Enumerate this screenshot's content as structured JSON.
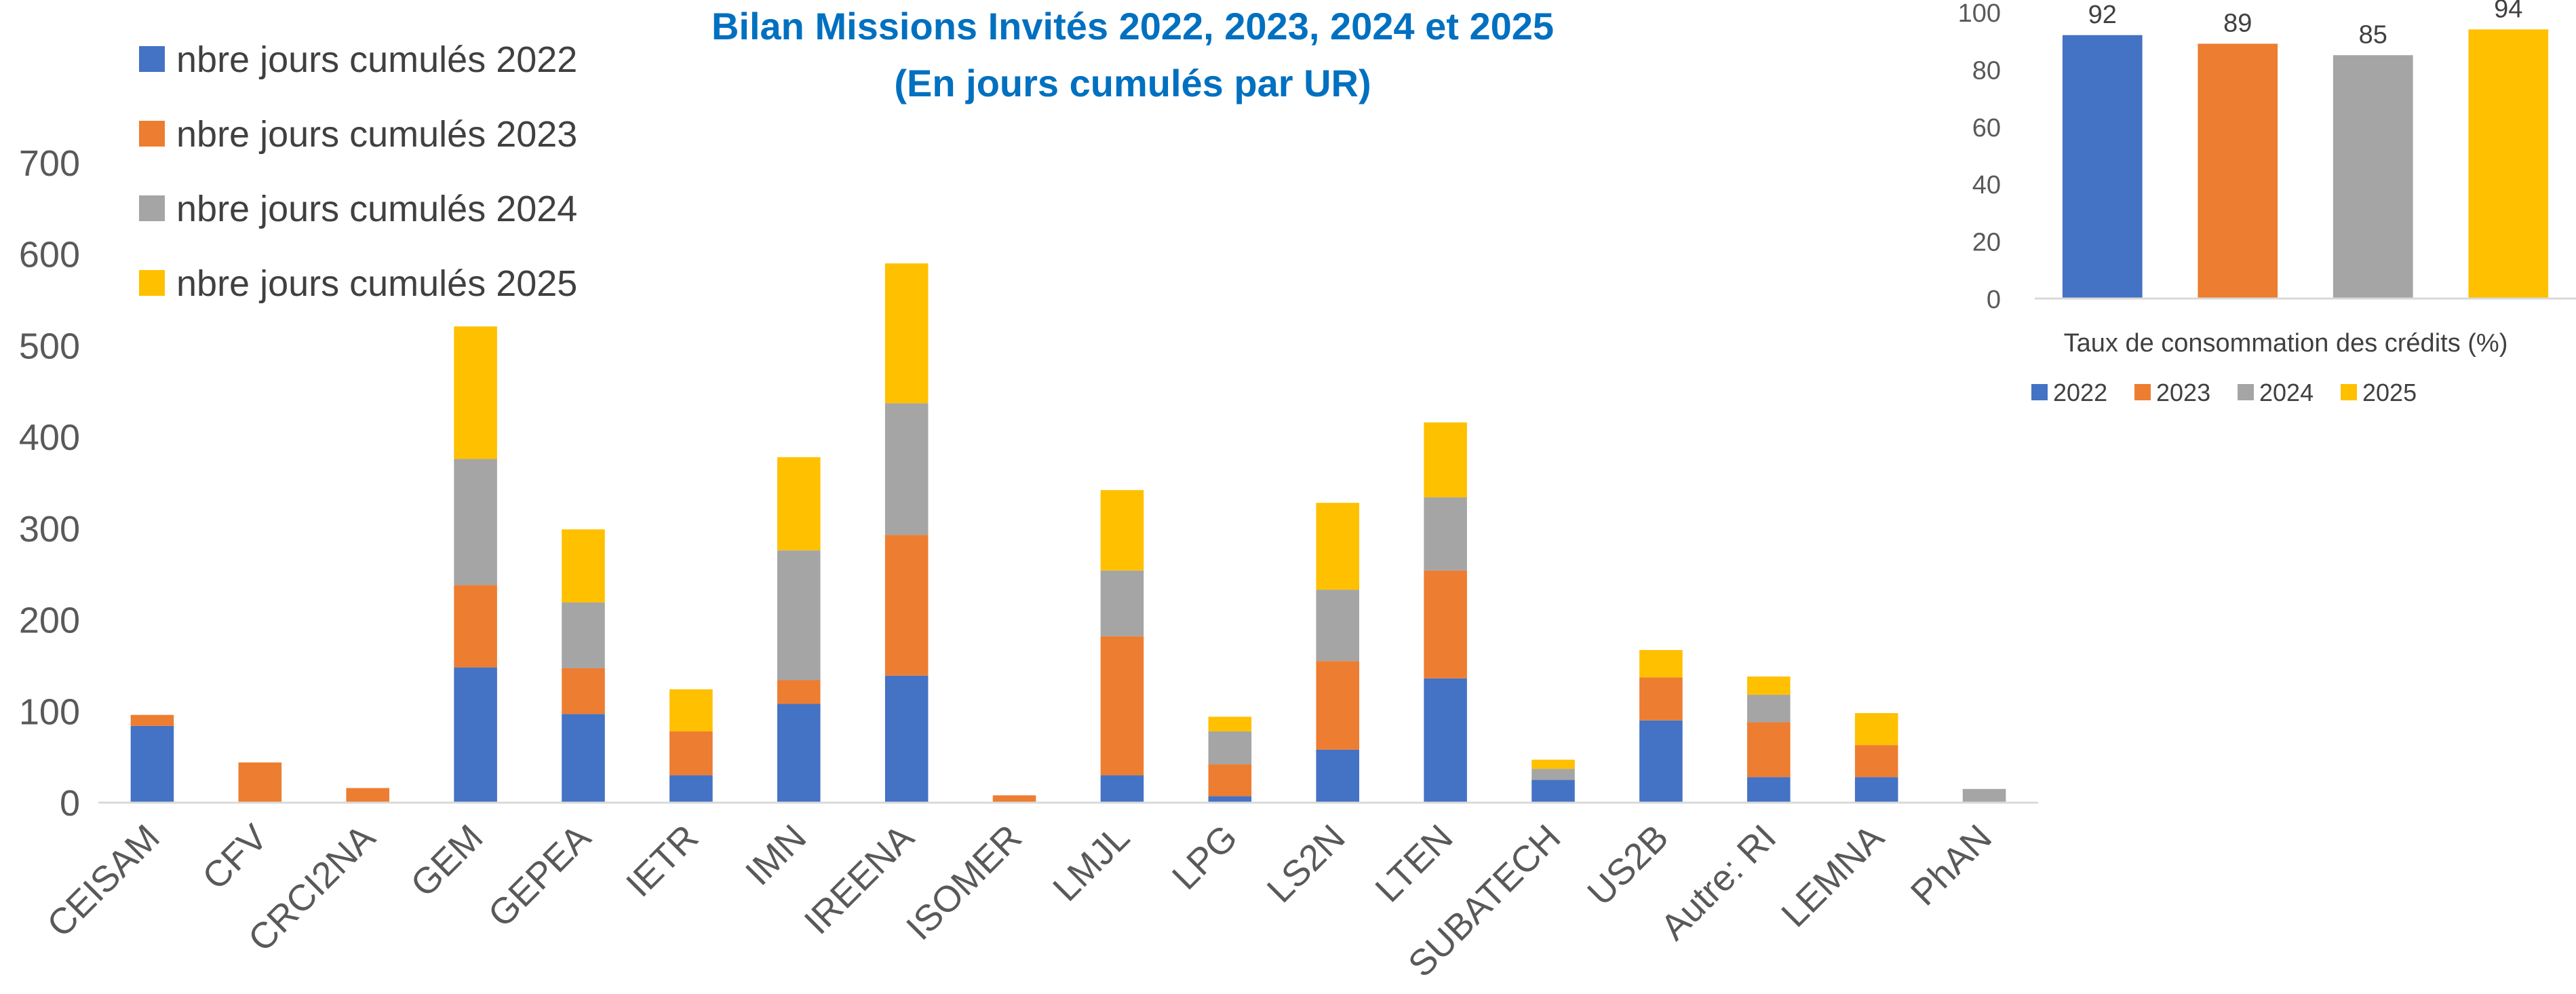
{
  "chart_data": [
    {
      "type": "bar",
      "stacked": true,
      "title": "Bilan Missions Invités 2022, 2023, 2024 et 2025",
      "subtitle": "(En jours cumulés par UR)",
      "title_color": "#0070c0",
      "xlabel": "",
      "ylabel": "",
      "ylim": [
        0,
        700
      ],
      "yticks": [
        "0",
        "100",
        "200",
        "300",
        "400",
        "500",
        "600",
        "700"
      ],
      "grid": false,
      "legend_position": "top-left",
      "categories": [
        "CEISAM",
        "CFV",
        "CRCI2NA",
        "GEM",
        "GEPEA",
        "IETR",
        "IMN",
        "IREENA",
        "ISOMER",
        "LMJL",
        "LPG",
        "LS2N",
        "LTEN",
        "SUBATECH",
        "US2B",
        "Autre: RI",
        "LEMNA",
        "PhAN"
      ],
      "series": [
        {
          "name": "nbre jours cumulés 2022",
          "color": "#4472c4",
          "values": [
            84,
            0,
            0,
            148,
            97,
            30,
            108,
            139,
            0,
            30,
            7,
            58,
            136,
            25,
            90,
            28,
            28,
            0
          ]
        },
        {
          "name": "nbre jours cumulés 2023",
          "color": "#ed7d31",
          "values": [
            12,
            44,
            16,
            90,
            50,
            48,
            26,
            154,
            8,
            152,
            35,
            97,
            118,
            0,
            47,
            60,
            35,
            0
          ]
        },
        {
          "name": "nbre jours cumulés 2024",
          "color": "#a5a5a5",
          "values": [
            0,
            0,
            0,
            138,
            72,
            0,
            142,
            144,
            0,
            72,
            36,
            78,
            80,
            12,
            0,
            30,
            0,
            15
          ]
        },
        {
          "name": "nbre jours cumulés 2025",
          "color": "#ffc000",
          "values": [
            0,
            0,
            0,
            145,
            80,
            46,
            102,
            153,
            0,
            88,
            16,
            95,
            82,
            10,
            30,
            20,
            35,
            0
          ]
        }
      ]
    },
    {
      "type": "bar",
      "title": "",
      "xlabel": "Taux de consommation des crédits (%)",
      "ylabel": "",
      "ylim": [
        0,
        100
      ],
      "yticks": [
        "0",
        "20",
        "40",
        "60",
        "80",
        "100"
      ],
      "grid": false,
      "legend_position": "bottom",
      "categories": [
        "2022",
        "2023",
        "2024",
        "2025"
      ],
      "values": [
        92,
        89,
        85,
        94
      ],
      "data_labels": [
        "92",
        "89",
        "85",
        "94"
      ],
      "colors": [
        "#4472c4",
        "#ed7d31",
        "#a5a5a5",
        "#ffc000"
      ],
      "legend": [
        "2022",
        "2023",
        "2024",
        "2025"
      ]
    }
  ]
}
